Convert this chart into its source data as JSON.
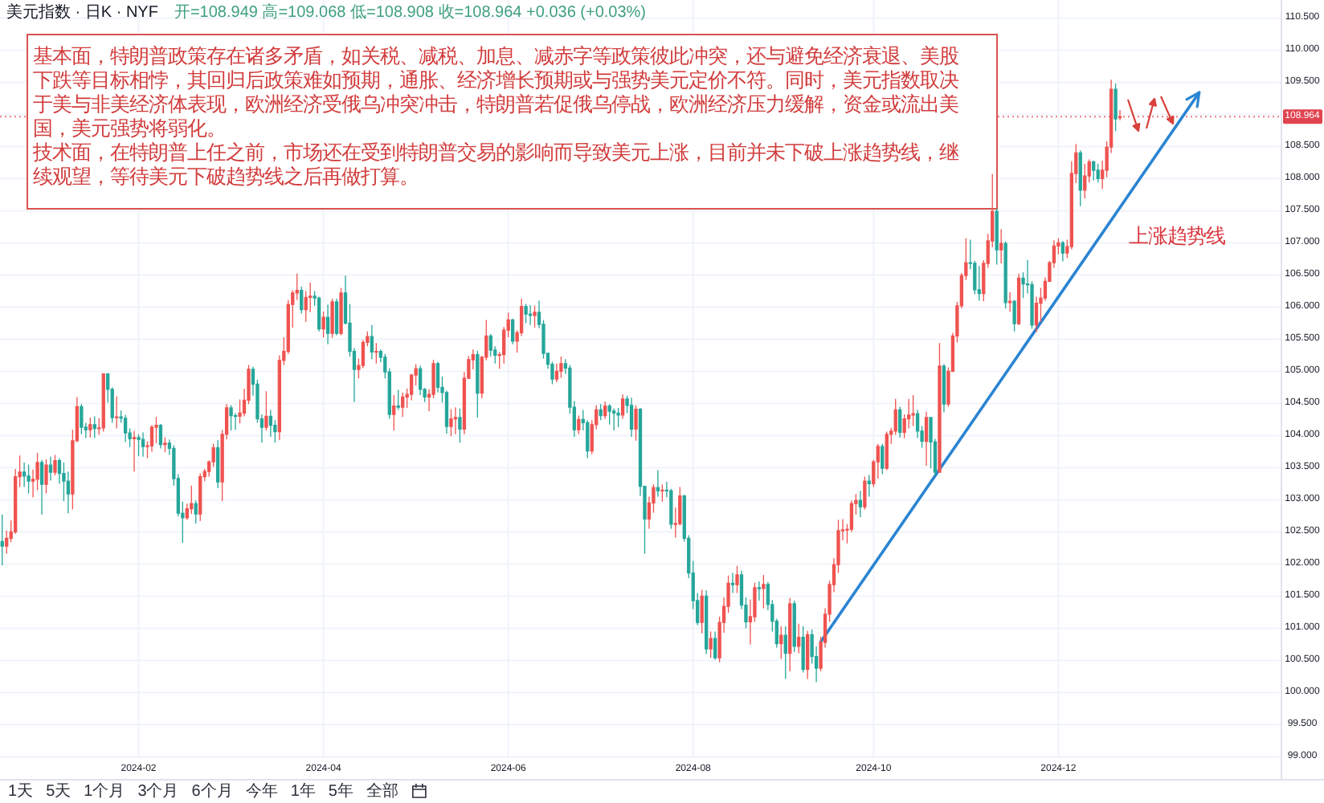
{
  "chart_data": {
    "type": "candlestick",
    "title": "美元指数 · 日K · NYF",
    "subtitle": "开=108.949 高=109.068 低=108.908 收=108.964 +0.036 (+0.03%)",
    "categories": [
      null,
      null,
      null,
      null,
      null,
      null,
      null,
      null,
      null,
      null,
      null,
      null,
      null,
      null,
      null,
      null,
      null,
      null,
      null,
      null,
      null,
      null,
      null,
      null,
      null,
      null,
      null,
      null,
      null,
      null,
      null,
      "2024-02",
      null,
      null,
      null,
      null,
      null,
      null,
      null,
      null,
      null,
      null,
      null,
      null,
      null,
      null,
      null,
      null,
      null,
      null,
      null,
      null,
      null,
      null,
      null,
      null,
      null,
      null,
      null,
      null,
      null,
      null,
      null,
      null,
      null,
      null,
      null,
      null,
      null,
      null,
      null,
      null,
      null,
      "2024-04",
      null,
      null,
      null,
      null,
      null,
      null,
      null,
      null,
      null,
      null,
      null,
      null,
      null,
      null,
      null,
      null,
      null,
      null,
      null,
      null,
      null,
      null,
      null,
      null,
      null,
      null,
      null,
      null,
      null,
      null,
      null,
      null,
      null,
      null,
      null,
      null,
      null,
      null,
      null,
      null,
      null,
      "2024-06",
      null,
      null,
      null,
      null,
      null,
      null,
      null,
      null,
      null,
      null,
      null,
      null,
      null,
      null,
      null,
      null,
      null,
      null,
      null,
      null,
      null,
      null,
      null,
      null,
      null,
      null,
      null,
      null,
      null,
      null,
      null,
      null,
      null,
      null,
      null,
      null,
      null,
      null,
      null,
      null,
      null,
      "2024-08",
      null,
      null,
      null,
      null,
      null,
      null,
      null,
      null,
      null,
      null,
      null,
      null,
      null,
      null,
      null,
      null,
      null,
      null,
      null,
      null,
      null,
      null,
      null,
      null,
      null,
      null,
      null,
      null,
      null,
      null,
      null,
      null,
      null,
      null,
      null,
      null,
      null,
      null,
      null,
      null,
      "2024-10",
      null,
      null,
      null,
      null,
      null,
      null,
      null,
      null,
      null,
      null,
      null,
      null,
      null,
      null,
      null,
      null,
      null,
      null,
      null,
      null,
      null,
      null,
      null,
      null,
      null,
      null,
      null,
      null,
      null,
      null,
      null,
      null,
      null,
      null,
      null,
      null,
      null,
      null,
      null,
      null,
      null,
      "2024-12",
      null,
      null,
      null,
      null,
      null,
      null,
      null,
      null,
      null,
      null,
      null,
      null,
      null,
      null,
      null,
      null,
      null,
      null,
      null,
      null,
      null,
      null,
      null,
      null,
      null,
      null,
      null,
      null,
      null,
      null,
      null,
      null,
      null,
      null,
      null,
      null,
      null,
      null,
      null,
      null,
      null,
      null,
      null,
      null,
      null,
      null,
      null,
      null,
      null,
      null
    ],
    "ohlc": [
      [
        102.35,
        102.77,
        101.98,
        102.28
      ],
      [
        102.28,
        102.52,
        102.16,
        102.4
      ],
      [
        102.4,
        102.68,
        102.34,
        102.5
      ],
      [
        102.5,
        103.48,
        102.47,
        103.36
      ],
      [
        103.36,
        103.69,
        103.2,
        103.43
      ],
      [
        103.43,
        103.58,
        103.2,
        103.37
      ],
      [
        103.37,
        103.55,
        103.1,
        103.29
      ],
      [
        103.29,
        103.47,
        103.04,
        103.32
      ],
      [
        103.32,
        103.73,
        103.15,
        103.58
      ],
      [
        103.58,
        103.62,
        102.77,
        103.24
      ],
      [
        103.24,
        103.63,
        103.1,
        103.54
      ],
      [
        103.54,
        103.67,
        103.3,
        103.43
      ],
      [
        103.43,
        103.7,
        103.38,
        103.61
      ],
      [
        103.61,
        103.65,
        103.25,
        103.41
      ],
      [
        103.41,
        103.58,
        102.98,
        103.29
      ],
      [
        103.29,
        103.44,
        102.79,
        103.09
      ],
      [
        103.09,
        104.09,
        102.85,
        103.92
      ],
      [
        103.92,
        104.6,
        103.9,
        104.45
      ],
      [
        104.45,
        104.49,
        104.02,
        104.13
      ],
      [
        104.13,
        104.2,
        103.96,
        104.09
      ],
      [
        104.09,
        104.28,
        103.97,
        104.17
      ],
      [
        104.17,
        104.3,
        103.96,
        104.11
      ],
      [
        104.11,
        104.27,
        104.01,
        104.12
      ],
      [
        104.12,
        104.97,
        104.06,
        104.96
      ],
      [
        104.96,
        104.97,
        104.51,
        104.72
      ],
      [
        104.72,
        104.75,
        104.2,
        104.28
      ],
      [
        104.28,
        104.61,
        104.11,
        104.29
      ],
      [
        104.29,
        104.39,
        104.2,
        104.27
      ],
      [
        104.27,
        104.32,
        103.9,
        104.04
      ],
      [
        104.04,
        104.11,
        103.82,
        103.95
      ],
      [
        103.95,
        104.07,
        103.44,
        103.97
      ],
      [
        103.97,
        104.02,
        103.68,
        103.94
      ],
      [
        103.94,
        104.05,
        103.67,
        103.83
      ],
      [
        103.83,
        103.91,
        103.65,
        103.84
      ],
      [
        103.84,
        104.16,
        103.75,
        104.13
      ],
      [
        104.13,
        104.29,
        103.88,
        104.16
      ],
      [
        104.16,
        104.18,
        103.8,
        103.86
      ],
      [
        103.86,
        103.97,
        103.74,
        103.88
      ],
      [
        103.88,
        103.94,
        103.7,
        103.8
      ],
      [
        103.8,
        103.85,
        103.22,
        103.33
      ],
      [
        103.33,
        103.4,
        102.74,
        102.79
      ],
      [
        102.79,
        102.97,
        102.33,
        102.72
      ],
      [
        102.72,
        102.94,
        102.69,
        102.86
      ],
      [
        102.86,
        103.22,
        102.78,
        102.94
      ],
      [
        102.94,
        102.99,
        102.63,
        102.78
      ],
      [
        102.78,
        103.41,
        102.67,
        103.36
      ],
      [
        103.36,
        103.48,
        103.29,
        103.44
      ],
      [
        103.44,
        103.61,
        103.36,
        103.59
      ],
      [
        103.59,
        103.87,
        103.51,
        103.81
      ],
      [
        103.81,
        103.93,
        103.18,
        103.28
      ],
      [
        103.28,
        104.09,
        102.98,
        104.02
      ],
      [
        104.02,
        104.49,
        103.94,
        104.43
      ],
      [
        104.43,
        104.47,
        104.08,
        104.31
      ],
      [
        104.31,
        104.35,
        104.09,
        104.3
      ],
      [
        104.3,
        104.56,
        104.19,
        104.35
      ],
      [
        104.35,
        104.73,
        104.3,
        104.55
      ],
      [
        104.55,
        105.1,
        104.49,
        105.03
      ],
      [
        105.03,
        105.07,
        104.62,
        104.8
      ],
      [
        104.8,
        104.87,
        104.2,
        104.26
      ],
      [
        104.26,
        104.33,
        103.89,
        104.13
      ],
      [
        104.13,
        104.69,
        104.08,
        104.3
      ],
      [
        104.3,
        104.4,
        103.98,
        104.16
      ],
      [
        104.16,
        104.24,
        103.89,
        104.06
      ],
      [
        104.06,
        105.25,
        103.93,
        105.17
      ],
      [
        105.17,
        105.53,
        105.1,
        105.31
      ],
      [
        105.31,
        106.11,
        105.27,
        106.04
      ],
      [
        106.04,
        106.26,
        105.68,
        106.22
      ],
      [
        106.22,
        106.52,
        106.11,
        106.26
      ],
      [
        106.26,
        106.32,
        105.9,
        105.96
      ],
      [
        105.96,
        106.25,
        105.77,
        106.15
      ],
      [
        106.15,
        106.38,
        105.92,
        106.17
      ],
      [
        106.17,
        106.25,
        106.02,
        106.14
      ],
      [
        106.14,
        106.16,
        105.62,
        105.66
      ],
      [
        105.66,
        105.93,
        105.53,
        105.84
      ],
      [
        105.84,
        106.04,
        105.42,
        105.59
      ],
      [
        105.59,
        106.13,
        105.52,
        106.08
      ],
      [
        106.08,
        106.13,
        105.56,
        105.59
      ],
      [
        105.59,
        106.3,
        105.56,
        106.22
      ],
      [
        106.22,
        106.49,
        105.73,
        105.75
      ],
      [
        105.75,
        106.05,
        105.23,
        105.31
      ],
      [
        105.31,
        105.36,
        104.52,
        105.03
      ],
      [
        105.03,
        105.2,
        104.89,
        105.09
      ],
      [
        105.09,
        105.49,
        105.05,
        105.45
      ],
      [
        105.45,
        105.62,
        105.39,
        105.54
      ],
      [
        105.54,
        105.72,
        105.19,
        105.3
      ],
      [
        105.3,
        105.44,
        105.12,
        105.31
      ],
      [
        105.31,
        105.34,
        105.14,
        105.22
      ],
      [
        105.22,
        105.27,
        104.89,
        104.99
      ],
      [
        104.99,
        105.05,
        104.26,
        104.33
      ],
      [
        104.33,
        104.63,
        104.08,
        104.46
      ],
      [
        104.46,
        104.71,
        104.4,
        104.44
      ],
      [
        104.44,
        104.67,
        104.29,
        104.6
      ],
      [
        104.6,
        104.73,
        104.43,
        104.64
      ],
      [
        104.64,
        104.96,
        104.55,
        104.94
      ],
      [
        104.94,
        105.11,
        104.78,
        105.04
      ],
      [
        105.04,
        105.09,
        104.63,
        104.72
      ],
      [
        104.72,
        104.74,
        104.52,
        104.6
      ],
      [
        104.6,
        104.72,
        104.38,
        104.64
      ],
      [
        104.64,
        105.18,
        104.58,
        105.12
      ],
      [
        105.12,
        105.15,
        104.67,
        104.75
      ],
      [
        104.75,
        104.92,
        104.51,
        104.67
      ],
      [
        104.67,
        104.7,
        104.03,
        104.14
      ],
      [
        104.14,
        104.41,
        103.99,
        104.26
      ],
      [
        104.26,
        104.44,
        104.02,
        104.28
      ],
      [
        104.28,
        104.42,
        103.89,
        104.1
      ],
      [
        104.1,
        104.99,
        104.02,
        104.89
      ],
      [
        104.89,
        105.24,
        104.88,
        105.18
      ],
      [
        105.18,
        105.34,
        105.03,
        105.26
      ],
      [
        105.26,
        105.32,
        104.28,
        104.66
      ],
      [
        104.66,
        105.24,
        104.58,
        105.22
      ],
      [
        105.22,
        105.8,
        105.17,
        105.55
      ],
      [
        105.55,
        105.58,
        105.23,
        105.33
      ],
      [
        105.33,
        105.39,
        105.12,
        105.25
      ],
      [
        105.25,
        105.3,
        105.04,
        105.26
      ],
      [
        105.26,
        105.69,
        105.12,
        105.64
      ],
      [
        105.64,
        105.91,
        105.53,
        105.8
      ],
      [
        105.8,
        105.82,
        105.42,
        105.47
      ],
      [
        105.47,
        105.64,
        105.29,
        105.6
      ],
      [
        105.6,
        106.13,
        105.55,
        106.01
      ],
      [
        106.01,
        106.05,
        105.75,
        105.89
      ],
      [
        105.89,
        106.03,
        105.72,
        105.87
      ],
      [
        105.87,
        106.02,
        105.68,
        105.92
      ],
      [
        105.92,
        106.1,
        105.67,
        105.73
      ],
      [
        105.73,
        105.8,
        105.2,
        105.28
      ],
      [
        105.28,
        105.29,
        105.04,
        105.11
      ],
      [
        105.11,
        105.15,
        104.8,
        104.88
      ],
      [
        104.88,
        105.12,
        104.83,
        105.0
      ],
      [
        105.0,
        105.23,
        104.9,
        105.12
      ],
      [
        105.12,
        105.19,
        104.96,
        105.05
      ],
      [
        105.05,
        105.1,
        104.34,
        104.44
      ],
      [
        104.44,
        104.54,
        103.98,
        104.09
      ],
      [
        104.09,
        104.31,
        104.02,
        104.25
      ],
      [
        104.25,
        104.4,
        104.08,
        104.2
      ],
      [
        104.2,
        104.24,
        103.65,
        103.76
      ],
      [
        103.76,
        104.24,
        103.71,
        104.17
      ],
      [
        104.17,
        104.47,
        104.1,
        104.4
      ],
      [
        104.4,
        104.49,
        104.24,
        104.31
      ],
      [
        104.31,
        104.53,
        104.26,
        104.46
      ],
      [
        104.46,
        104.49,
        104.17,
        104.38
      ],
      [
        104.38,
        104.42,
        104.08,
        104.35
      ],
      [
        104.35,
        104.43,
        104.13,
        104.32
      ],
      [
        104.32,
        104.64,
        104.26,
        104.57
      ],
      [
        104.57,
        104.62,
        104.35,
        104.47
      ],
      [
        104.47,
        104.59,
        103.98,
        104.1
      ],
      [
        104.1,
        104.47,
        103.92,
        104.41
      ],
      [
        104.41,
        104.43,
        103.06,
        103.21
      ],
      [
        103.21,
        103.22,
        102.16,
        102.7
      ],
      [
        102.7,
        103.05,
        102.55,
        102.95
      ],
      [
        102.95,
        103.24,
        102.8,
        103.19
      ],
      [
        103.19,
        103.46,
        103.05,
        103.14
      ],
      [
        103.14,
        103.24,
        102.97,
        103.15
      ],
      [
        103.15,
        103.28,
        103.04,
        103.14
      ],
      [
        103.14,
        103.17,
        102.55,
        102.62
      ],
      [
        102.62,
        102.88,
        102.41,
        102.63
      ],
      [
        102.63,
        103.2,
        102.6,
        103.06
      ],
      [
        103.06,
        103.08,
        102.35,
        102.4
      ],
      [
        102.4,
        102.45,
        101.78,
        101.86
      ],
      [
        101.86,
        102.05,
        101.3,
        101.43
      ],
      [
        101.43,
        101.55,
        101.05,
        101.09
      ],
      [
        101.09,
        101.6,
        100.92,
        101.5
      ],
      [
        101.5,
        101.59,
        100.6,
        100.68
      ],
      [
        100.68,
        100.95,
        100.54,
        100.84
      ],
      [
        100.84,
        100.95,
        100.51,
        100.54
      ],
      [
        100.54,
        101.18,
        100.47,
        101.09
      ],
      [
        101.09,
        101.48,
        100.93,
        101.34
      ],
      [
        101.34,
        101.82,
        101.24,
        101.7
      ],
      [
        101.7,
        101.86,
        101.55,
        101.68
      ],
      [
        101.68,
        101.97,
        101.55,
        101.83
      ],
      [
        101.83,
        101.9,
        101.3,
        101.36
      ],
      [
        101.36,
        101.48,
        101.0,
        101.1
      ],
      [
        101.1,
        101.45,
        100.75,
        101.18
      ],
      [
        101.18,
        101.71,
        101.1,
        101.63
      ],
      [
        101.63,
        101.73,
        101.43,
        101.62
      ],
      [
        101.62,
        101.83,
        101.31,
        101.68
      ],
      [
        101.68,
        101.72,
        101.28,
        101.37
      ],
      [
        101.37,
        101.44,
        100.95,
        101.11
      ],
      [
        101.11,
        101.15,
        100.7,
        100.76
      ],
      [
        100.76,
        101.03,
        100.52,
        100.89
      ],
      [
        100.89,
        101.03,
        100.21,
        100.61
      ],
      [
        100.61,
        101.47,
        100.33,
        101.38
      ],
      [
        101.38,
        101.43,
        100.63,
        100.72
      ],
      [
        100.72,
        101.07,
        100.61,
        100.86
      ],
      [
        100.86,
        101.03,
        100.31,
        100.36
      ],
      [
        100.36,
        100.96,
        100.21,
        100.9
      ],
      [
        100.9,
        100.98,
        100.45,
        100.56
      ],
      [
        100.56,
        100.72,
        100.16,
        100.38
      ],
      [
        100.38,
        100.87,
        100.33,
        100.78
      ],
      [
        100.78,
        101.31,
        100.7,
        101.22
      ],
      [
        101.22,
        101.74,
        101.1,
        101.68
      ],
      [
        101.68,
        102.09,
        101.56,
        101.99
      ],
      [
        101.99,
        102.69,
        101.86,
        102.52
      ],
      [
        102.52,
        102.7,
        102.37,
        102.53
      ],
      [
        102.53,
        102.62,
        102.32,
        102.54
      ],
      [
        102.54,
        102.99,
        102.5,
        102.94
      ],
      [
        102.94,
        103.09,
        102.77,
        102.99
      ],
      [
        102.99,
        103.14,
        102.73,
        102.89
      ],
      [
        102.89,
        103.36,
        102.85,
        103.29
      ],
      [
        103.29,
        103.39,
        103.05,
        103.25
      ],
      [
        103.25,
        103.62,
        103.2,
        103.59
      ],
      [
        103.59,
        103.87,
        103.33,
        103.83
      ],
      [
        103.83,
        103.87,
        103.4,
        103.49
      ],
      [
        103.49,
        104.06,
        103.46,
        104.02
      ],
      [
        104.02,
        104.12,
        103.87,
        104.07
      ],
      [
        104.07,
        104.57,
        104.01,
        104.4
      ],
      [
        104.4,
        104.45,
        103.97,
        104.05
      ],
      [
        104.05,
        104.33,
        103.96,
        104.26
      ],
      [
        104.26,
        104.57,
        104.11,
        104.32
      ],
      [
        104.32,
        104.63,
        104.15,
        104.34
      ],
      [
        104.34,
        104.4,
        103.96,
        104.07
      ],
      [
        104.07,
        104.15,
        103.81,
        103.91
      ],
      [
        103.91,
        104.37,
        103.53,
        104.28
      ],
      [
        104.28,
        104.29,
        103.49,
        103.9
      ],
      [
        103.9,
        103.95,
        103.37,
        103.43
      ],
      [
        103.43,
        105.44,
        103.42,
        105.08
      ],
      [
        105.08,
        105.11,
        104.36,
        104.49
      ],
      [
        104.49,
        105.06,
        104.45,
        105.0
      ],
      [
        105.0,
        105.6,
        104.99,
        105.55
      ],
      [
        105.55,
        106.08,
        105.45,
        106.02
      ],
      [
        106.02,
        106.53,
        105.98,
        106.49
      ],
      [
        106.49,
        107.07,
        106.42,
        106.69
      ],
      [
        106.69,
        107.05,
        106.59,
        106.68
      ],
      [
        106.68,
        106.72,
        106.2,
        106.27
      ],
      [
        106.27,
        106.64,
        106.1,
        106.21
      ],
      [
        106.21,
        106.73,
        106.09,
        106.68
      ],
      [
        106.68,
        107.14,
        106.61,
        107.03
      ],
      [
        107.03,
        108.07,
        106.93,
        107.49
      ],
      [
        107.49,
        107.53,
        106.66,
        106.89
      ],
      [
        106.89,
        107.21,
        106.68,
        106.99
      ],
      [
        106.99,
        107.02,
        105.98,
        106.07
      ],
      [
        106.07,
        106.23,
        105.93,
        106.09
      ],
      [
        106.09,
        106.11,
        105.62,
        105.74
      ],
      [
        105.74,
        106.52,
        105.72,
        106.45
      ],
      [
        106.45,
        106.54,
        106.14,
        106.36
      ],
      [
        106.36,
        106.73,
        106.21,
        106.35
      ],
      [
        106.35,
        106.4,
        105.66,
        105.72
      ],
      [
        105.72,
        106.16,
        105.61,
        106.06
      ],
      [
        106.06,
        106.3,
        105.77,
        106.14
      ],
      [
        106.14,
        106.46,
        106.1,
        106.4
      ],
      [
        106.4,
        106.72,
        106.39,
        106.69
      ],
      [
        106.69,
        107.04,
        106.61,
        106.95
      ],
      [
        106.95,
        107.07,
        106.82,
        107.0
      ],
      [
        107.0,
        107.03,
        106.71,
        106.84
      ],
      [
        106.84,
        107.05,
        106.76,
        106.94
      ],
      [
        106.94,
        108.27,
        106.9,
        108.08
      ],
      [
        108.08,
        108.54,
        107.93,
        108.4
      ],
      [
        108.4,
        108.44,
        107.57,
        107.82
      ],
      [
        107.82,
        108.23,
        107.69,
        108.04
      ],
      [
        108.04,
        108.3,
        107.94,
        108.26
      ],
      [
        108.26,
        108.28,
        107.97,
        108.13
      ],
      [
        108.13,
        108.23,
        107.94,
        108.0
      ],
      [
        108.0,
        108.28,
        107.84,
        108.13
      ],
      [
        108.13,
        108.58,
        108.02,
        108.49
      ],
      [
        108.49,
        109.54,
        108.4,
        109.39
      ],
      [
        109.39,
        109.48,
        108.74,
        108.93
      ],
      [
        108.949,
        109.068,
        108.908,
        108.964
      ],
      null,
      null,
      null,
      null,
      null,
      null,
      null,
      null,
      null,
      null,
      null,
      null,
      null,
      null,
      null,
      null,
      null,
      null,
      null,
      null,
      null,
      null,
      null,
      null,
      null,
      null,
      null,
      null,
      null,
      null,
      null,
      null,
      null,
      null,
      null,
      null
    ],
    "colors": [
      "#26a69a",
      "#ef5350",
      "#ef5350",
      "#ef5350",
      "#ef5350",
      "#26a69a",
      "#26a69a",
      "#ef5350",
      "#ef5350",
      "#26a69a",
      "#ef5350",
      "#26a69a",
      "#ef5350",
      "#26a69a",
      "#26a69a",
      "#26a69a",
      "#ef5350",
      "#ef5350",
      "#26a69a",
      "#26a69a",
      "#ef5350",
      "#26a69a",
      "#ef5350",
      "#ef5350",
      "#26a69a",
      "#26a69a",
      "#ef5350",
      "#26a69a",
      "#26a69a",
      "#26a69a",
      "#ef5350",
      "#26a69a",
      "#26a69a",
      "#ef5350",
      "#ef5350",
      "#ef5350",
      "#26a69a",
      "#ef5350",
      "#26a69a",
      "#26a69a",
      "#26a69a",
      "#26a69a",
      "#ef5350",
      "#ef5350",
      "#26a69a",
      "#ef5350",
      "#ef5350",
      "#ef5350",
      "#ef5350",
      "#26a69a",
      "#ef5350",
      "#ef5350",
      "#26a69a",
      "#26a69a",
      "#ef5350",
      "#ef5350",
      "#ef5350",
      "#26a69a",
      "#26a69a",
      "#26a69a",
      "#ef5350",
      "#26a69a",
      "#26a69a",
      "#ef5350",
      "#ef5350",
      "#ef5350",
      "#ef5350",
      "#ef5350",
      "#26a69a",
      "#ef5350",
      "#ef5350",
      "#26a69a",
      "#26a69a",
      "#ef5350",
      "#26a69a",
      "#ef5350",
      "#26a69a",
      "#ef5350",
      "#26a69a",
      "#26a69a",
      "#26a69a",
      "#ef5350",
      "#ef5350",
      "#ef5350",
      "#26a69a",
      "#ef5350",
      "#26a69a",
      "#26a69a",
      "#26a69a",
      "#ef5350",
      "#26a69a",
      "#ef5350",
      "#ef5350",
      "#ef5350",
      "#ef5350",
      "#26a69a",
      "#26a69a",
      "#ef5350",
      "#ef5350",
      "#26a69a",
      "#26a69a",
      "#26a69a",
      "#ef5350",
      "#ef5350",
      "#26a69a",
      "#ef5350",
      "#ef5350",
      "#ef5350",
      "#26a69a",
      "#ef5350",
      "#ef5350",
      "#26a69a",
      "#26a69a",
      "#ef5350",
      "#ef5350",
      "#ef5350",
      "#26a69a",
      "#ef5350",
      "#ef5350",
      "#26a69a",
      "#26a69a",
      "#ef5350",
      "#26a69a",
      "#26a69a",
      "#26a69a",
      "#26a69a",
      "#ef5350",
      "#ef5350",
      "#26a69a",
      "#26a69a",
      "#26a69a",
      "#ef5350",
      "#26a69a",
      "#26a69a",
      "#ef5350",
      "#ef5350",
      "#26a69a",
      "#ef5350",
      "#26a69a",
      "#26a69a",
      "#26a69a",
      "#ef5350",
      "#26a69a",
      "#26a69a",
      "#ef5350",
      "#26a69a",
      "#26a69a",
      "#ef5350",
      "#ef5350",
      "#26a69a",
      "#ef5350",
      "#26a69a",
      "#26a69a",
      "#ef5350",
      "#ef5350",
      "#26a69a",
      "#26a69a",
      "#26a69a",
      "#26a69a",
      "#ef5350",
      "#26a69a",
      "#ef5350",
      "#26a69a",
      "#ef5350",
      "#ef5350",
      "#ef5350",
      "#26a69a",
      "#ef5350",
      "#26a69a",
      "#26a69a",
      "#ef5350",
      "#ef5350",
      "#26a69a",
      "#ef5350",
      "#26a69a",
      "#26a69a",
      "#26a69a",
      "#ef5350",
      "#26a69a",
      "#ef5350",
      "#26a69a",
      "#ef5350",
      "#26a69a",
      "#ef5350",
      "#26a69a",
      "#26a69a",
      "#ef5350",
      "#ef5350",
      "#ef5350",
      "#ef5350",
      "#ef5350",
      "#ef5350",
      "#ef5350",
      "#ef5350",
      "#ef5350",
      "#26a69a",
      "#ef5350",
      "#26a69a",
      "#ef5350",
      "#ef5350",
      "#26a69a",
      "#ef5350",
      "#ef5350",
      "#ef5350",
      "#26a69a",
      "#ef5350",
      "#ef5350",
      "#ef5350",
      "#26a69a",
      "#26a69a",
      "#ef5350",
      "#26a69a",
      "#26a69a",
      "#ef5350",
      "#26a69a",
      "#ef5350",
      "#ef5350",
      "#ef5350",
      "#ef5350",
      "#ef5350",
      "#26a69a",
      "#26a69a",
      "#26a69a",
      "#ef5350",
      "#ef5350",
      "#ef5350",
      "#26a69a",
      "#ef5350",
      "#26a69a",
      "#ef5350",
      "#26a69a",
      "#ef5350",
      "#26a69a",
      "#26a69a",
      "#26a69a",
      "#ef5350",
      "#ef5350",
      "#ef5350",
      "#ef5350",
      "#ef5350",
      "#ef5350",
      "#26a69a",
      "#ef5350",
      "#ef5350",
      "#ef5350",
      "#26a69a",
      "#ef5350",
      "#ef5350",
      "#26a69a",
      "#26a69a",
      "#ef5350",
      "#ef5350",
      "#ef5350",
      "#26a69a",
      "#ef5350",
      null,
      null,
      null,
      null,
      null,
      null,
      null,
      null,
      null,
      null,
      null,
      null,
      null,
      null,
      null,
      null,
      null,
      null,
      null,
      null,
      null,
      null,
      null,
      null,
      null,
      null,
      null,
      null,
      null,
      null,
      null,
      null,
      null,
      null,
      null,
      null
    ],
    "series": [
      {
        "type": "line",
        "color": "#2a84d2",
        "values": [
          null,
          null,
          null,
          null,
          null,
          null,
          null,
          null,
          null,
          null,
          null,
          null,
          null,
          null,
          null,
          null,
          null,
          null,
          null,
          null,
          null,
          null,
          null,
          null,
          null,
          null,
          null,
          null,
          null,
          null,
          null,
          null,
          null,
          null,
          null,
          null,
          null,
          null,
          null,
          null,
          null,
          null,
          null,
          null,
          null,
          null,
          null,
          null,
          null,
          null,
          null,
          null,
          null,
          null,
          null,
          null,
          null,
          null,
          null,
          null,
          null,
          null,
          null,
          null,
          null,
          null,
          null,
          null,
          null,
          null,
          null,
          null,
          null,
          null,
          null,
          null,
          null,
          null,
          null,
          null,
          null,
          null,
          null,
          null,
          null,
          null,
          null,
          null,
          null,
          null,
          null,
          null,
          null,
          null,
          null,
          null,
          null,
          null,
          null,
          null,
          null,
          null,
          null,
          null,
          null,
          null,
          null,
          null,
          null,
          null,
          null,
          null,
          null,
          null,
          null,
          null,
          null,
          null,
          null,
          null,
          null,
          null,
          null,
          null,
          null,
          null,
          null,
          null,
          null,
          null,
          null,
          null,
          null,
          null,
          null,
          null,
          null,
          null,
          null,
          null,
          null,
          null,
          null,
          null,
          null,
          null,
          null,
          null,
          null,
          null,
          null,
          null,
          null,
          null,
          null,
          null,
          null,
          null,
          null,
          null,
          null,
          null,
          null,
          null,
          null,
          null,
          null,
          null,
          null,
          null,
          null,
          null,
          null,
          null,
          null,
          null,
          null,
          null,
          null,
          null,
          null,
          null,
          null,
          null,
          null,
          null,
          100.79,
          null,
          null,
          null,
          null,
          null,
          null,
          null,
          null,
          null,
          null,
          null,
          null,
          null,
          null,
          null,
          null,
          null,
          null,
          null,
          null,
          null,
          null,
          null,
          null,
          null,
          null,
          null,
          null,
          null,
          null,
          null,
          null,
          null,
          null,
          null,
          null,
          null,
          null,
          null,
          null,
          null,
          null,
          null,
          null,
          null,
          null,
          null,
          null,
          null,
          null,
          null,
          null,
          null,
          null,
          null,
          null,
          null,
          null,
          null,
          null,
          null,
          null,
          null,
          null,
          null,
          null,
          null,
          null,
          null,
          null,
          null,
          null,
          null,
          null,
          null,
          null,
          null,
          null,
          null,
          null,
          null,
          null,
          null,
          null,
          null,
          109.34,
          null,
          null,
          null,
          null,
          null,
          null,
          null,
          null,
          null,
          null,
          null,
          null,
          null,
          null,
          null,
          null,
          null,
          null
        ]
      }
    ],
    "ylim": [
      98.98,
      110.78
    ],
    "yticks": [
      {
        "value": 99,
        "label": "99.000"
      },
      {
        "value": 99.5,
        "label": "99.500"
      },
      {
        "value": 100,
        "label": "100.000"
      },
      {
        "value": 100.5,
        "label": "100.500"
      },
      {
        "value": 101,
        "label": "101.000"
      },
      {
        "value": 101.5,
        "label": "101.500"
      },
      {
        "value": 102,
        "label": "102.000"
      },
      {
        "value": 102.5,
        "label": "102.500"
      },
      {
        "value": 103,
        "label": "103.000"
      },
      {
        "value": 103.5,
        "label": "103.500"
      },
      {
        "value": 104,
        "label": "104.000"
      },
      {
        "value": 104.5,
        "label": "104.500"
      },
      {
        "value": 105,
        "label": "105.000"
      },
      {
        "value": 105.5,
        "label": "105.500"
      },
      {
        "value": 106,
        "label": "106.000"
      },
      {
        "value": 106.5,
        "label": "106.500"
      },
      {
        "value": 107,
        "label": "107.000"
      },
      {
        "value": 107.5,
        "label": "107.500"
      },
      {
        "value": 108,
        "label": "108.000"
      },
      {
        "value": 108.5,
        "label": "108.500"
      },
      {
        "value": 109,
        "label": null
      },
      {
        "value": 109.5,
        "label": "109.500"
      },
      {
        "value": 110,
        "label": "110.000"
      },
      {
        "value": 110.5,
        "label": "110.500"
      }
    ],
    "grid": true,
    "ref_lines": [
      {
        "axis": "y",
        "value": 108.964,
        "label": "108.964",
        "color": "#e0434f",
        "line_style": "dotted"
      }
    ],
    "annotations": [
      "基本面，特朗普政策存在诸多矛盾，如关税、减税、加息、减赤字等政策彼此冲突，还与避免经济衰退、美股下跌等目标相悖，其回归后政策难如预期，通胀、经济增长预期或与强势美元定价不符。同时，美元指数取决于美与非美经济体表现，欧洲经济受俄乌冲突冲击，特朗普若促俄乌停战，欧洲经济压力缓解，资金或流出美国，美元强势将弱化。",
      "技术面，在特朗普上任之前，市场还在受到特朗普交易的影响而导致美元上涨，目前并未下破上涨趋势线，继续观望，等待美元下破趋势线之后再做打算。",
      "上涨趋势线",
      "1天 5天 1个月 3个月 6个月 今年 1年 5年 全部"
    ]
  }
}
